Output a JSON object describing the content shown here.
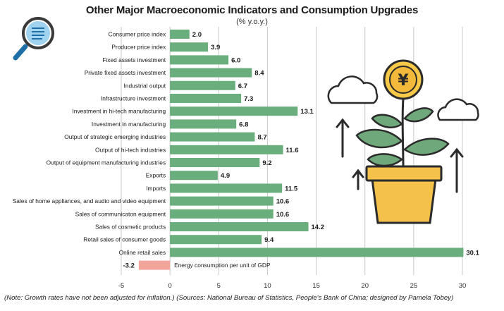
{
  "title": "Other Major Macroeconomic Indicators and Consumption Upgrades",
  "subtitle": "(% y.o.y.)",
  "note": "(Note: Growth rates have not been adjusted for inflation.)  (Sources: National Bureau of Statistics, People's Bank of China; designed by Pamela Tobey)",
  "icons": {
    "magnifier": "magnifying-glass-icon",
    "plant": "potted-plant-icon",
    "coin_symbol": "¥"
  },
  "colors": {
    "positive_bar": "#6aae7d",
    "negative_bar": "#f2a39a",
    "grid": "#c8c8c8",
    "pot": "#f4c24a",
    "coin": "#f7c948",
    "leaf": "#6fa87a"
  },
  "chart_data": {
    "type": "bar",
    "orientation": "horizontal",
    "categories": [
      "Consumer price index",
      "Producer price index",
      "Fixed assets investment",
      "Private fixed assets investment",
      "Industrial output",
      "Infrastructure investment",
      "Investment in hi-tech manufacturing",
      "Investment in manufacturing",
      "Output of strategic emerging industries",
      "Output of hi-tech industries",
      "Output of equipment manufacturing industries",
      "Exports",
      "Imports",
      "Sales of home appliances, and audio and video equipment",
      "Sales of communicaton equipment",
      "Sales of cosmetic products",
      "Retail sales of consumer goods",
      "Online retail sales",
      "Energy consumption per unit of GDP"
    ],
    "values": [
      2.0,
      3.9,
      6.0,
      8.4,
      6.7,
      7.3,
      13.1,
      6.8,
      8.7,
      11.6,
      9.2,
      4.9,
      11.5,
      10.6,
      10.6,
      14.2,
      9.4,
      30.1,
      -3.2
    ],
    "value_labels": [
      "2.0",
      "3.9",
      "6.0",
      "8.4",
      "6.7",
      "7.3",
      "13.1",
      "6.8",
      "8.7",
      "11.6",
      "9.2",
      "4.9",
      "11.5",
      "10.6",
      "10.6",
      "14.2",
      "9.4",
      "30.1",
      "-3.2"
    ],
    "xlim": [
      -5,
      30
    ],
    "xticks": [
      -5,
      0,
      5,
      10,
      15,
      20,
      25,
      30
    ],
    "xtick_labels": [
      "-5",
      "0",
      "5",
      "10",
      "15",
      "20",
      "25",
      "30"
    ],
    "grid": true,
    "xlabel": "",
    "ylabel": ""
  }
}
